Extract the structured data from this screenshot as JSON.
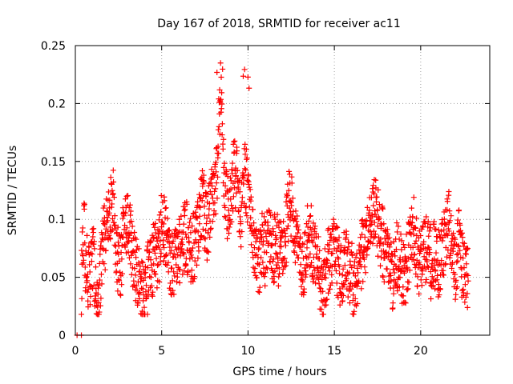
{
  "chart_data": {
    "type": "scatter",
    "title": "Day 167 of 2018, SRMTID for receiver ac11",
    "xlabel": "GPS time / hours",
    "ylabel": "SRMTID / TECUs",
    "xlim": [
      0,
      24
    ],
    "ylim": [
      0,
      0.25
    ],
    "xticks": [
      0,
      5,
      10,
      15,
      20
    ],
    "yticks": [
      0,
      0.05,
      0.1,
      0.15,
      0.2,
      0.25
    ],
    "xtick_labels": [
      "0",
      "5",
      "10",
      "15",
      "20"
    ],
    "ytick_labels": [
      "0",
      "0.05",
      "0.1",
      "0.15",
      "0.2",
      "0.25"
    ],
    "grid": true,
    "marker": "+",
    "series": [
      {
        "name": "SRMTID",
        "color": "#ff0000",
        "description": "~2000 points sampled every ~40s from 0 to ~22.7 h; baseline 0.02-0.13, enhanced activity 7-10.5 h up to 0.23",
        "x": [
          0.1,
          0.3,
          0.25,
          0.5,
          0.6,
          0.8,
          1.0,
          1.2,
          1.4,
          1.6,
          1.8,
          2.0,
          2.2,
          2.4,
          2.6,
          2.8,
          3.0,
          3.2,
          3.4,
          3.6,
          3.8,
          4.0,
          4.2,
          4.4,
          4.6,
          4.8,
          5.0,
          5.2,
          5.4,
          5.6,
          5.8,
          6.0,
          6.2,
          6.4,
          6.6,
          6.8,
          7.0,
          7.2,
          7.4,
          7.6,
          7.8,
          8.0,
          8.2,
          8.4,
          8.6,
          8.8,
          9.0,
          9.2,
          9.4,
          9.6,
          9.8,
          10.0,
          10.2,
          10.4,
          10.6,
          10.8,
          11.0,
          11.2,
          11.4,
          11.6,
          11.8,
          12.0,
          12.2,
          12.4,
          12.6,
          12.8,
          13.0,
          13.2,
          13.4,
          13.6,
          13.8,
          14.0,
          14.2,
          14.4,
          14.6,
          14.8,
          15.0,
          15.2,
          15.4,
          15.6,
          15.8,
          16.0,
          16.2,
          16.4,
          16.6,
          16.8,
          17.0,
          17.2,
          17.4,
          17.6,
          17.8,
          18.0,
          18.2,
          18.4,
          18.6,
          18.8,
          19.0,
          19.2,
          19.4,
          19.6,
          19.8,
          20.0,
          20.2,
          20.4,
          20.6,
          20.8,
          21.0,
          21.2,
          21.4,
          21.6,
          21.8,
          22.0,
          22.2,
          22.4,
          22.6
        ],
        "y": [
          0.06,
          0.065,
          0.0,
          0.1,
          0.06,
          0.05,
          0.07,
          0.04,
          0.035,
          0.08,
          0.09,
          0.11,
          0.12,
          0.07,
          0.06,
          0.09,
          0.1,
          0.08,
          0.06,
          0.05,
          0.04,
          0.03,
          0.05,
          0.06,
          0.07,
          0.065,
          0.1,
          0.09,
          0.07,
          0.06,
          0.07,
          0.07,
          0.08,
          0.09,
          0.07,
          0.075,
          0.08,
          0.1,
          0.12,
          0.09,
          0.11,
          0.12,
          0.14,
          0.22,
          0.13,
          0.11,
          0.12,
          0.14,
          0.13,
          0.1,
          0.14,
          0.12,
          0.1,
          0.07,
          0.06,
          0.08,
          0.07,
          0.09,
          0.06,
          0.08,
          0.07,
          0.08,
          0.09,
          0.12,
          0.1,
          0.08,
          0.07,
          0.06,
          0.08,
          0.09,
          0.07,
          0.06,
          0.05,
          0.04,
          0.06,
          0.07,
          0.08,
          0.06,
          0.05,
          0.07,
          0.06,
          0.05,
          0.04,
          0.06,
          0.07,
          0.08,
          0.09,
          0.1,
          0.11,
          0.09,
          0.08,
          0.07,
          0.06,
          0.05,
          0.07,
          0.06,
          0.05,
          0.06,
          0.08,
          0.09,
          0.07,
          0.06,
          0.07,
          0.08,
          0.06,
          0.07,
          0.06,
          0.07,
          0.08,
          0.1,
          0.07,
          0.06,
          0.08,
          0.06,
          0.05
        ]
      }
    ]
  }
}
